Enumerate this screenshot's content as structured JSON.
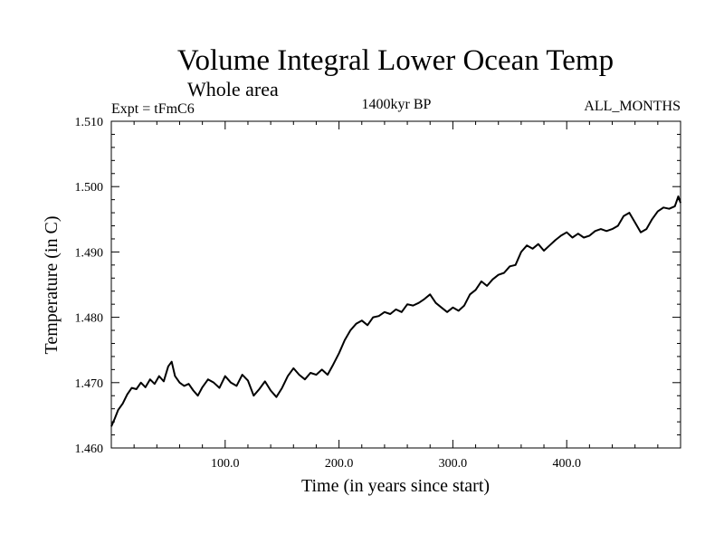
{
  "chart_data": {
    "type": "line",
    "title": "Volume Integral Lower Ocean Temp",
    "subtitle": "Whole area",
    "left_label": "Expt = tFmC6",
    "center_label": "1400kyr BP",
    "right_label": "ALL_MONTHS",
    "xlabel": "Time (in years since start)",
    "ylabel": "Temperature (in C)",
    "xlim": [
      0,
      500
    ],
    "ylim": [
      1.46,
      1.51
    ],
    "x_ticks": [
      100,
      200,
      300,
      400
    ],
    "x_tick_labels": [
      "100.0",
      "200.0",
      "300.0",
      "400.0"
    ],
    "y_ticks": [
      1.46,
      1.47,
      1.48,
      1.49,
      1.5,
      1.51
    ],
    "y_tick_labels": [
      "1.460",
      "1.470",
      "1.480",
      "1.490",
      "1.500",
      "1.510"
    ],
    "line_color": "#000000",
    "series": [
      {
        "name": "Volume Integral Lower Ocean Temp",
        "x": [
          0,
          3,
          6,
          10,
          14,
          18,
          22,
          26,
          30,
          34,
          38,
          42,
          46,
          50,
          53,
          56,
          60,
          64,
          68,
          72,
          76,
          80,
          85,
          90,
          95,
          100,
          105,
          110,
          115,
          120,
          125,
          130,
          135,
          140,
          145,
          150,
          155,
          160,
          165,
          170,
          175,
          180,
          185,
          190,
          195,
          200,
          205,
          210,
          215,
          220,
          225,
          230,
          235,
          240,
          245,
          250,
          255,
          260,
          265,
          270,
          275,
          280,
          285,
          290,
          295,
          300,
          305,
          310,
          315,
          320,
          325,
          330,
          335,
          340,
          345,
          350,
          355,
          360,
          365,
          370,
          375,
          380,
          385,
          390,
          395,
          400,
          405,
          410,
          415,
          420,
          425,
          430,
          435,
          440,
          445,
          450,
          455,
          460,
          465,
          470,
          475,
          480,
          485,
          490,
          495,
          498,
          500
        ],
        "y": [
          1.4633,
          1.4645,
          1.4658,
          1.4668,
          1.4682,
          1.4692,
          1.469,
          1.47,
          1.4693,
          1.4705,
          1.4698,
          1.471,
          1.4702,
          1.4725,
          1.4732,
          1.471,
          1.47,
          1.4695,
          1.4698,
          1.4688,
          1.468,
          1.4693,
          1.4705,
          1.47,
          1.4692,
          1.471,
          1.47,
          1.4695,
          1.4712,
          1.4703,
          1.468,
          1.469,
          1.4702,
          1.4688,
          1.4678,
          1.4692,
          1.471,
          1.4722,
          1.4712,
          1.4705,
          1.4715,
          1.4712,
          1.472,
          1.4712,
          1.4728,
          1.4745,
          1.4765,
          1.478,
          1.479,
          1.4795,
          1.4788,
          1.48,
          1.4802,
          1.4808,
          1.4805,
          1.4812,
          1.4808,
          1.482,
          1.4818,
          1.4822,
          1.4828,
          1.4835,
          1.4822,
          1.4815,
          1.4808,
          1.4815,
          1.481,
          1.4818,
          1.4835,
          1.4842,
          1.4855,
          1.4848,
          1.4858,
          1.4865,
          1.4868,
          1.4878,
          1.488,
          1.49,
          1.491,
          1.4905,
          1.4912,
          1.4902,
          1.491,
          1.4918,
          1.4925,
          1.493,
          1.4922,
          1.4928,
          1.4922,
          1.4925,
          1.4932,
          1.4935,
          1.4932,
          1.4935,
          1.494,
          1.4955,
          1.496,
          1.4945,
          1.493,
          1.4935,
          1.495,
          1.4962,
          1.4968,
          1.4966,
          1.497,
          1.4985,
          1.4975
        ]
      }
    ]
  }
}
